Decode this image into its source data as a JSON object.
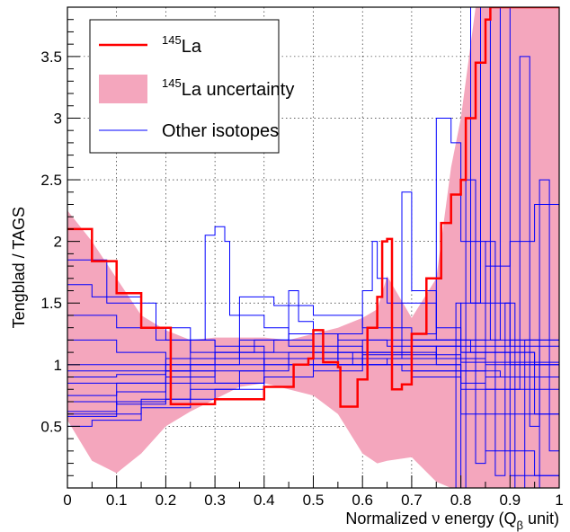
{
  "chart_data": {
    "type": "line",
    "title": "",
    "xlabel": "Normalized ν energy (Q",
    "xlabel_sub": "β",
    "xlabel_end": " unit)",
    "ylabel": "Tengblad / TAGS",
    "xlim": [
      0,
      1
    ],
    "ylim": [
      0,
      3.9
    ],
    "grid": true,
    "legend_position": "top-left",
    "x_ticks": [
      0,
      0.1,
      0.2,
      0.3,
      0.4,
      0.5,
      0.6,
      0.7,
      0.8,
      0.9,
      1
    ],
    "x_tick_labels": [
      "0",
      "0.1",
      "0.2",
      "0.3",
      "0.4",
      "0.5",
      "0.6",
      "0.7",
      "0.8",
      "0.9",
      "1"
    ],
    "y_ticks": [
      0.5,
      1,
      1.5,
      2,
      2.5,
      3,
      3.5
    ],
    "y_tick_labels": [
      "0.5",
      "1",
      "1.5",
      "2",
      "2.5",
      "3",
      "3.5"
    ],
    "colors": {
      "main": "#ff0000",
      "band": "#f4a6bd",
      "others": "#0000ff"
    },
    "legend": {
      "main_sup": "145",
      "main": "La",
      "band_sup": "145",
      "band": "La uncertainty",
      "others": "Other isotopes"
    },
    "main_series": {
      "name": "145La",
      "points": [
        [
          0,
          2.1
        ],
        [
          0.05,
          1.84
        ],
        [
          0.1,
          1.58
        ],
        [
          0.15,
          1.3
        ],
        [
          0.21,
          0.98
        ],
        [
          0.21,
          0.68
        ],
        [
          0.3,
          0.72
        ],
        [
          0.4,
          0.82
        ],
        [
          0.46,
          1.0
        ],
        [
          0.49,
          1.05
        ],
        [
          0.5,
          1.28
        ],
        [
          0.52,
          1.02
        ],
        [
          0.55,
          0.98
        ],
        [
          0.555,
          0.66
        ],
        [
          0.59,
          0.88
        ],
        [
          0.61,
          1.3
        ],
        [
          0.63,
          1.55
        ],
        [
          0.64,
          2.0
        ],
        [
          0.65,
          2.02
        ],
        [
          0.66,
          0.8
        ],
        [
          0.68,
          0.84
        ],
        [
          0.7,
          1.25
        ],
        [
          0.73,
          1.7
        ],
        [
          0.76,
          2.15
        ],
        [
          0.78,
          2.38
        ],
        [
          0.8,
          2.5
        ],
        [
          0.81,
          3.0
        ],
        [
          0.83,
          3.45
        ],
        [
          0.85,
          3.8
        ],
        [
          0.86,
          3.9
        ],
        [
          1.0,
          3.9
        ]
      ]
    },
    "uncertainty_band": {
      "upper": [
        [
          0,
          2.25
        ],
        [
          0.05,
          2.0
        ],
        [
          0.1,
          1.7
        ],
        [
          0.15,
          1.4
        ],
        [
          0.2,
          1.28
        ],
        [
          0.25,
          1.2
        ],
        [
          0.3,
          1.22
        ],
        [
          0.35,
          1.22
        ],
        [
          0.4,
          1.22
        ],
        [
          0.45,
          1.2
        ],
        [
          0.5,
          1.25
        ],
        [
          0.55,
          1.3
        ],
        [
          0.6,
          1.38
        ],
        [
          0.63,
          1.45
        ],
        [
          0.65,
          1.72
        ],
        [
          0.7,
          1.38
        ],
        [
          0.75,
          1.7
        ],
        [
          0.78,
          2.6
        ],
        [
          0.8,
          3.0
        ],
        [
          0.83,
          3.9
        ],
        [
          1.0,
          3.9
        ]
      ],
      "lower": [
        [
          0,
          0.55
        ],
        [
          0.05,
          0.22
        ],
        [
          0.1,
          0.12
        ],
        [
          0.15,
          0.28
        ],
        [
          0.2,
          0.5
        ],
        [
          0.25,
          0.62
        ],
        [
          0.3,
          0.72
        ],
        [
          0.35,
          0.82
        ],
        [
          0.4,
          0.85
        ],
        [
          0.45,
          0.8
        ],
        [
          0.5,
          0.75
        ],
        [
          0.55,
          0.6
        ],
        [
          0.6,
          0.28
        ],
        [
          0.63,
          0.2
        ],
        [
          0.65,
          0.22
        ],
        [
          0.7,
          0.25
        ],
        [
          0.75,
          0.05
        ],
        [
          0.78,
          0.0
        ],
        [
          1.0,
          0.0
        ]
      ]
    },
    "other_series": [
      {
        "points": [
          [
            0,
            1.0
          ],
          [
            0.2,
            1.0
          ],
          [
            0.4,
            1.05
          ],
          [
            0.6,
            1.08
          ],
          [
            0.8,
            1.02
          ],
          [
            1.0,
            1.0
          ]
        ]
      },
      {
        "points": [
          [
            0,
            0.6
          ],
          [
            0.15,
            0.72
          ],
          [
            0.25,
            0.85
          ],
          [
            0.4,
            1.05
          ],
          [
            0.55,
            1.1
          ],
          [
            0.7,
            1.15
          ],
          [
            0.8,
            1.1
          ],
          [
            0.95,
            1.0
          ],
          [
            1.0,
            0.9
          ]
        ]
      },
      {
        "points": [
          [
            0,
            0.58
          ],
          [
            0.1,
            0.7
          ],
          [
            0.2,
            0.95
          ],
          [
            0.25,
            1.2
          ],
          [
            0.28,
            2.05
          ],
          [
            0.3,
            2.12
          ],
          [
            0.32,
            2.0
          ],
          [
            0.33,
            1.4
          ],
          [
            0.4,
            1.3
          ],
          [
            0.45,
            1.15
          ],
          [
            0.55,
            1.0
          ],
          [
            0.7,
            0.95
          ],
          [
            0.85,
            0.8
          ],
          [
            1.0,
            0.7
          ]
        ]
      },
      {
        "points": [
          [
            0,
            1.85
          ],
          [
            0.08,
            1.5
          ],
          [
            0.18,
            1.2
          ],
          [
            0.3,
            1.05
          ],
          [
            0.45,
            1.0
          ],
          [
            0.6,
            1.05
          ],
          [
            0.75,
            1.15
          ],
          [
            0.9,
            1.2
          ],
          [
            1.0,
            1.1
          ]
        ]
      },
      {
        "points": [
          [
            0,
            1.65
          ],
          [
            0.05,
            1.55
          ],
          [
            0.15,
            1.3
          ],
          [
            0.25,
            1.1
          ],
          [
            0.4,
            1.0
          ],
          [
            0.55,
            1.1
          ],
          [
            0.7,
            1.2
          ],
          [
            0.82,
            1.1
          ],
          [
            0.95,
            0.6
          ],
          [
            1.0,
            0.4
          ]
        ]
      },
      {
        "points": [
          [
            0,
            0.75
          ],
          [
            0.1,
            0.85
          ],
          [
            0.25,
            1.0
          ],
          [
            0.35,
            1.55
          ],
          [
            0.42,
            1.48
          ],
          [
            0.5,
            1.4
          ],
          [
            0.6,
            1.3
          ],
          [
            0.7,
            1.2
          ],
          [
            0.8,
            1.1
          ],
          [
            0.9,
            1.0
          ],
          [
            1.0,
            0.95
          ]
        ]
      },
      {
        "points": [
          [
            0,
            0.95
          ],
          [
            0.12,
            0.95
          ],
          [
            0.2,
            1.05
          ],
          [
            0.35,
            1.2
          ],
          [
            0.45,
            1.25
          ],
          [
            0.55,
            1.2
          ],
          [
            0.65,
            1.15
          ],
          [
            0.75,
            1.05
          ],
          [
            0.85,
            0.9
          ],
          [
            1.0,
            0.8
          ]
        ]
      },
      {
        "points": [
          [
            0,
            0.5
          ],
          [
            0.05,
            0.55
          ],
          [
            0.15,
            0.65
          ],
          [
            0.25,
            0.8
          ],
          [
            0.35,
            0.95
          ],
          [
            0.45,
            1.1
          ],
          [
            0.55,
            1.25
          ],
          [
            0.6,
            1.6
          ],
          [
            0.62,
            2.0
          ],
          [
            0.63,
            1.7
          ],
          [
            0.65,
            1.5
          ],
          [
            0.75,
            1.2
          ],
          [
            0.85,
            1.0
          ],
          [
            1.0,
            0.9
          ]
        ]
      },
      {
        "points": [
          [
            0,
            0.85
          ],
          [
            0.2,
            0.9
          ],
          [
            0.3,
            0.95
          ],
          [
            0.4,
            1.0
          ],
          [
            0.5,
            1.1
          ],
          [
            0.6,
            1.2
          ],
          [
            0.7,
            1.25
          ],
          [
            0.75,
            3.0
          ],
          [
            0.78,
            2.8
          ],
          [
            0.8,
            2.0
          ],
          [
            0.85,
            1.5
          ],
          [
            0.9,
            1.2
          ],
          [
            1.0,
            1.0
          ]
        ]
      },
      {
        "points": [
          [
            0,
            1.2
          ],
          [
            0.1,
            1.1
          ],
          [
            0.2,
            0.95
          ],
          [
            0.3,
            0.85
          ],
          [
            0.4,
            0.9
          ],
          [
            0.5,
            1.0
          ],
          [
            0.6,
            1.05
          ],
          [
            0.7,
            1.1
          ],
          [
            0.75,
            1.0
          ],
          [
            0.8,
            0.6
          ],
          [
            0.85,
            0.3
          ],
          [
            0.9,
            0.1
          ],
          [
            1.0,
            0.05
          ]
        ]
      },
      {
        "points": [
          [
            0,
            0.9
          ],
          [
            0.1,
            0.92
          ],
          [
            0.2,
            1.0
          ],
          [
            0.3,
            1.1
          ],
          [
            0.42,
            1.2
          ],
          [
            0.5,
            1.25
          ],
          [
            0.55,
            1.15
          ],
          [
            0.6,
            1.05
          ],
          [
            0.7,
            1.0
          ],
          [
            0.8,
            0.95
          ],
          [
            0.88,
            0.9
          ],
          [
            1.0,
            0.85
          ]
        ]
      },
      {
        "points": [
          [
            0,
            0.7
          ],
          [
            0.1,
            0.68
          ],
          [
            0.2,
            0.72
          ],
          [
            0.3,
            0.8
          ],
          [
            0.4,
            0.9
          ],
          [
            0.5,
            0.95
          ],
          [
            0.6,
            1.0
          ],
          [
            0.65,
            1.05
          ],
          [
            0.68,
            2.4
          ],
          [
            0.7,
            1.6
          ],
          [
            0.75,
            1.3
          ],
          [
            0.8,
            1.2
          ],
          [
            0.9,
            1.15
          ],
          [
            1.0,
            1.1
          ]
        ]
      },
      {
        "points": [
          [
            0,
            1.4
          ],
          [
            0.1,
            1.3
          ],
          [
            0.2,
            1.2
          ],
          [
            0.3,
            1.15
          ],
          [
            0.4,
            1.1
          ],
          [
            0.5,
            1.05
          ],
          [
            0.6,
            1.0
          ],
          [
            0.7,
            0.9
          ],
          [
            0.8,
            0.85
          ],
          [
            0.85,
            0.6
          ],
          [
            0.9,
            0.3
          ],
          [
            0.95,
            0.1
          ],
          [
            1.0,
            0.0
          ]
        ]
      },
      {
        "points": [
          [
            0.5,
            1.0
          ],
          [
            0.6,
            1.1
          ],
          [
            0.7,
            1.2
          ],
          [
            0.8,
            1.5
          ],
          [
            0.85,
            1.8
          ],
          [
            0.9,
            2.0
          ],
          [
            0.95,
            2.3
          ],
          [
            1.0,
            2.6
          ]
        ]
      },
      {
        "points": [
          [
            0,
            0.62
          ],
          [
            0.1,
            0.78
          ],
          [
            0.2,
            0.95
          ],
          [
            0.3,
            1.1
          ],
          [
            0.38,
            1.2
          ],
          [
            0.45,
            1.6
          ],
          [
            0.47,
            1.35
          ],
          [
            0.5,
            1.1
          ],
          [
            0.58,
            1.0
          ],
          [
            0.68,
            0.95
          ],
          [
            0.8,
            0.8
          ],
          [
            0.9,
            0.6
          ],
          [
            1.0,
            0.4
          ]
        ]
      },
      {
        "points": [
          [
            0.8,
            3.9
          ],
          [
            0.82,
            1.5
          ],
          [
            0.84,
            3.9
          ],
          [
            0.86,
            1.2
          ],
          [
            0.88,
            3.9
          ],
          [
            0.9,
            0.8
          ],
          [
            0.92,
            3.5
          ],
          [
            0.94,
            0.5
          ],
          [
            0.96,
            2.5
          ],
          [
            0.98,
            0.3
          ],
          [
            1.0,
            1.8
          ]
        ]
      },
      {
        "points": [
          [
            0.78,
            0.0
          ],
          [
            0.79,
            1.5
          ],
          [
            0.8,
            0.0
          ],
          [
            0.81,
            2.5
          ],
          [
            0.83,
            0.2
          ],
          [
            0.85,
            2.0
          ],
          [
            0.87,
            0.1
          ],
          [
            0.89,
            1.5
          ],
          [
            0.91,
            0.0
          ],
          [
            0.93,
            1.2
          ],
          [
            0.96,
            0.0
          ],
          [
            1.0,
            0.9
          ]
        ]
      }
    ]
  }
}
